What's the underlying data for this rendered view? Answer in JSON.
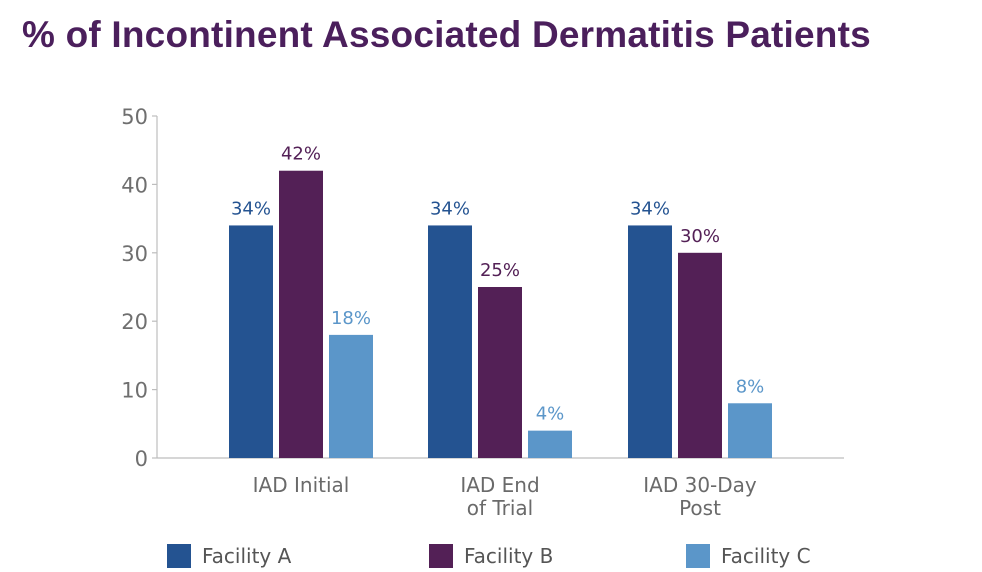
{
  "chart_data": {
    "type": "bar",
    "title": "% of Incontinent Associated Dermatitis Patients",
    "categories": [
      [
        "IAD Initial"
      ],
      [
        "IAD End",
        "of Trial"
      ],
      [
        "IAD 30-Day",
        "Post"
      ]
    ],
    "series": [
      {
        "name": "Facility A",
        "values": [
          34,
          34,
          34
        ],
        "labels": [
          "34%",
          "34%",
          "34%"
        ],
        "color": "#245391"
      },
      {
        "name": "Facility B",
        "values": [
          42,
          25,
          30
        ],
        "labels": [
          "42%",
          "25%",
          "30%"
        ],
        "color": "#532056"
      },
      {
        "name": "Facility C",
        "values": [
          18,
          4,
          8
        ],
        "labels": [
          "18%",
          "4%",
          "8%"
        ],
        "color": "#5b96c9"
      }
    ],
    "ylim": [
      0,
      50
    ],
    "yticks": [
      0,
      10,
      20,
      30,
      40,
      50
    ],
    "xlabel": "",
    "ylabel": "",
    "grid": false,
    "legend_position": "bottom"
  }
}
